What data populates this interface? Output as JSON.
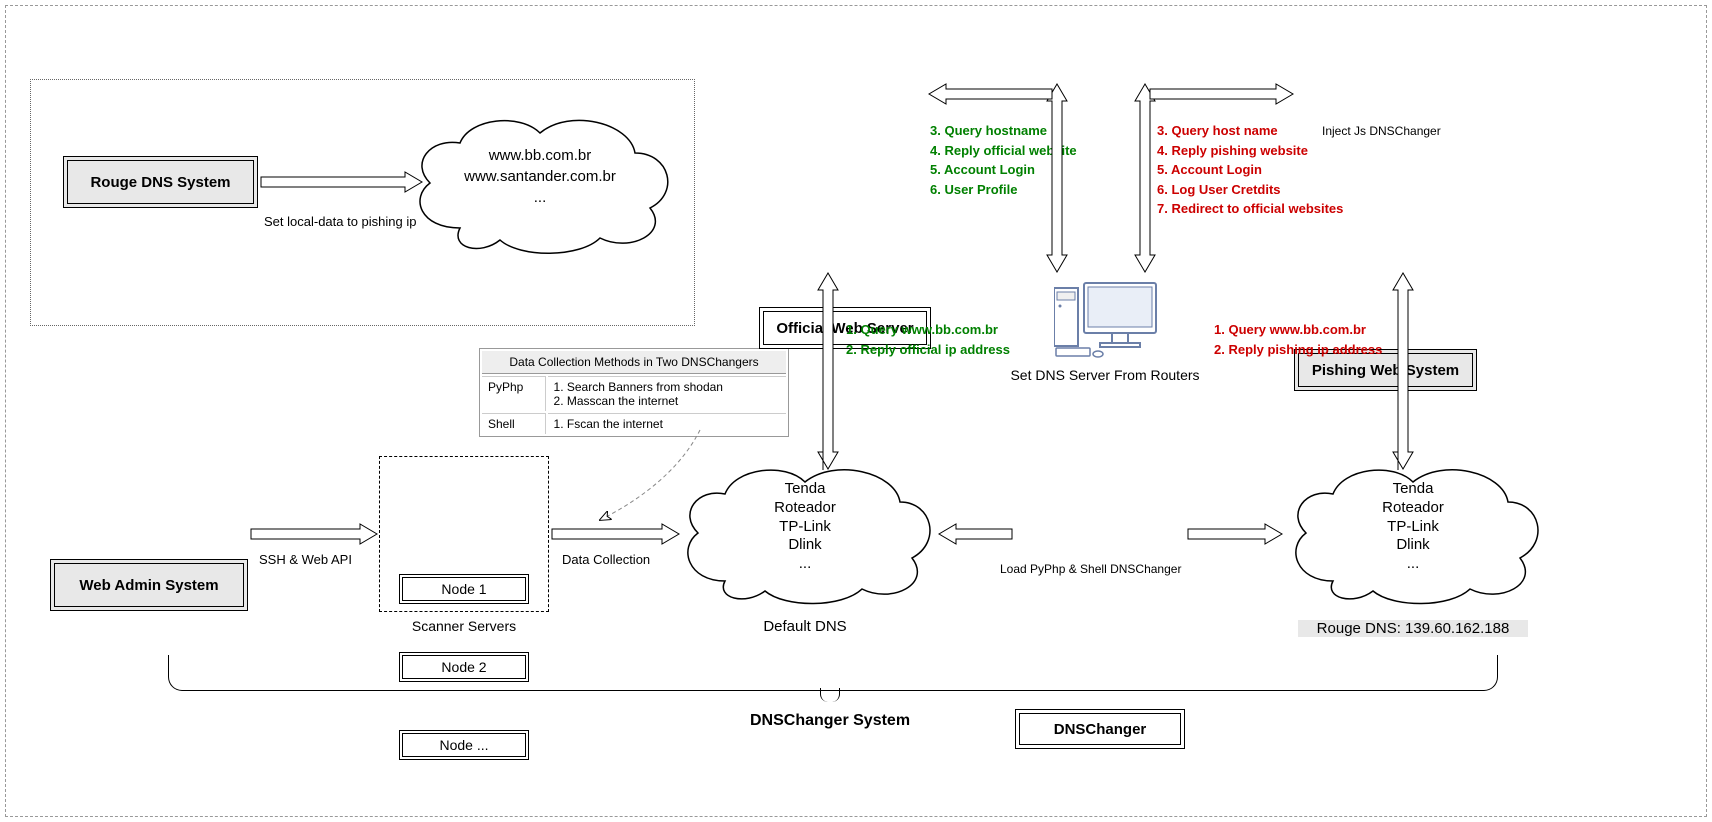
{
  "colors": {
    "green": "#008000",
    "red": "#cc0000",
    "grey_fill": "#e8e8e8",
    "border": "#000000",
    "dash": "#999999"
  },
  "diagram": {
    "title": "DNSChanger System",
    "boxes": {
      "rouge_dns": "Rouge DNS System",
      "web_admin": "Web Admin System",
      "official_server": "Official Web Server",
      "pishing_system": "Pishing Web System",
      "dnschanger": "DNSChanger"
    },
    "labels": {
      "set_local_data": "Set local-data to pishing ip",
      "ssh_webapi": "SSH & Web API",
      "data_collection": "Data Collection",
      "scanner_servers": "Scanner Servers",
      "default_dns": "Default DNS",
      "load_pyphp": "Load PyPhp & Shell DNSChanger",
      "set_dns_server": "Set DNS Server From Routers",
      "inject_js": "Inject Js DNSChanger",
      "rouge_dns_ip": "Rouge DNS: 139.60.162.188"
    },
    "clouds": {
      "domains": [
        "www.bb.com.br",
        "www.santander.com.br",
        "..."
      ],
      "routers": [
        "Tenda",
        "Roteador",
        "TP-Link",
        "Dlink",
        "..."
      ]
    },
    "nodes": [
      "Node 1",
      "Node 2",
      "Node ..."
    ],
    "table": {
      "header": "Data Collection Methods in Two DNSChangers",
      "rows": [
        {
          "k": "PyPhp",
          "v": "1. Search Banners from shodan\n2. Masscan the internet"
        },
        {
          "k": "Shell",
          "v": "1. Fscan the internet"
        }
      ]
    },
    "green_top": [
      "3. Query hostname",
      "4. Reply official website",
      "5. Account Login",
      "6. User Profile"
    ],
    "red_top": [
      "3. Query host name",
      "4. Reply pishing website",
      "5. Account Login",
      "6. Log User Cretdits",
      "7. Redirect to official websites"
    ],
    "green_mid": [
      "1. Query www.bb.com.br",
      "2. Reply official ip address"
    ],
    "red_mid": [
      "1. Query www.bb.com.br",
      "2. Reply pishing ip address"
    ]
  }
}
